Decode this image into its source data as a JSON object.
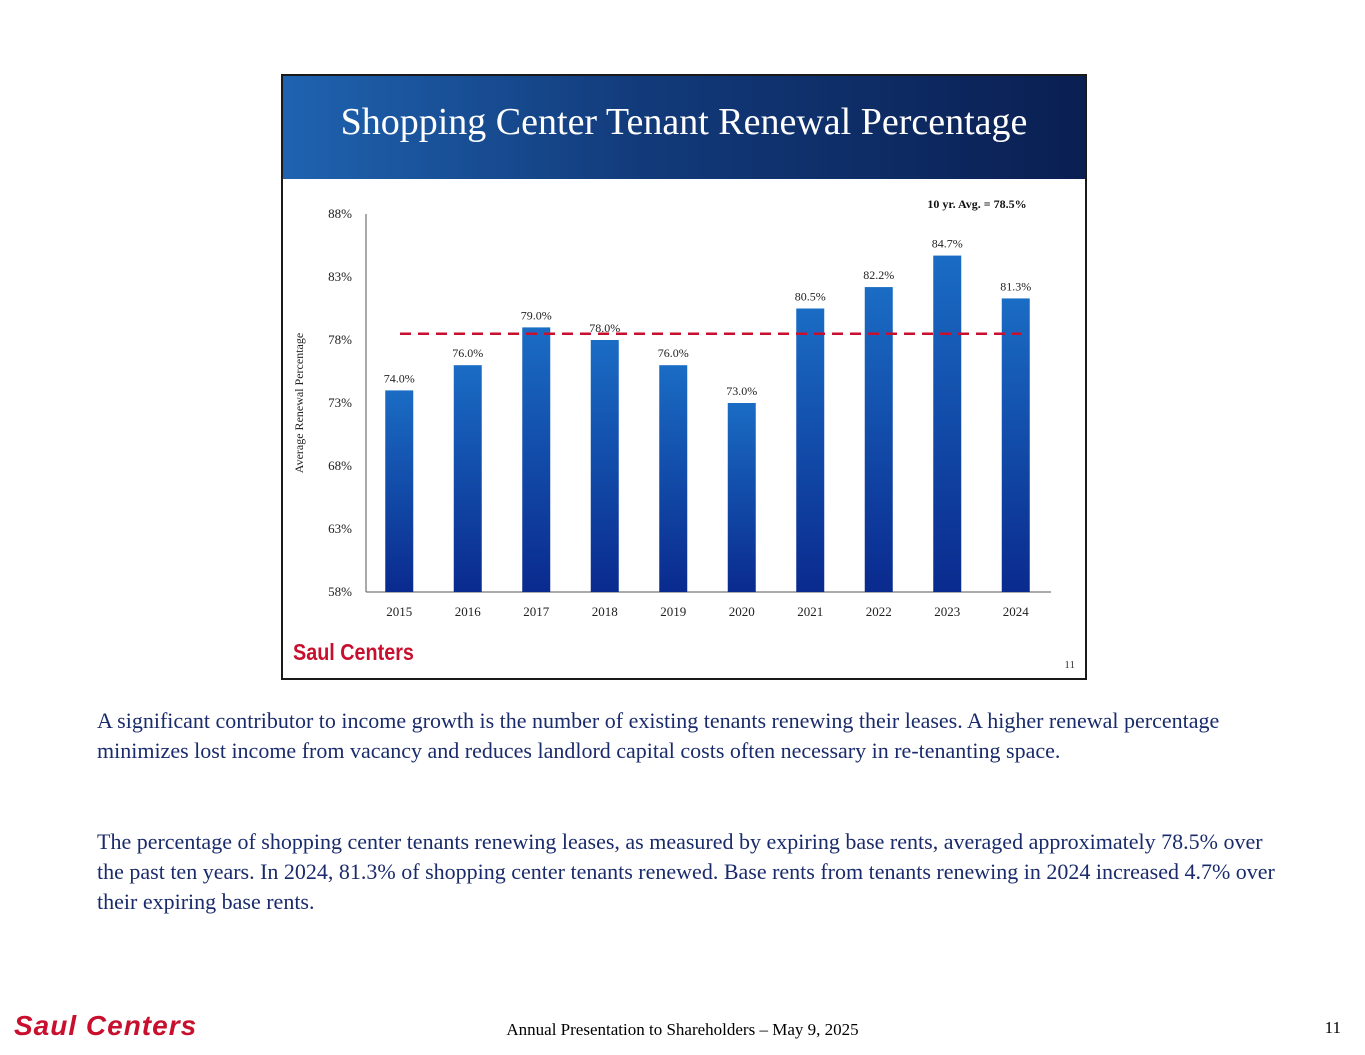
{
  "slide": {
    "title": "Shopping Center Tenant Renewal Percentage",
    "logo": "Saul Centers",
    "page_number": "11"
  },
  "chart_data": {
    "type": "bar",
    "title": "Shopping Center Tenant Renewal Percentage",
    "ylabel": "Average Renewal Percentage",
    "xlabel": "",
    "categories": [
      "2015",
      "2016",
      "2017",
      "2018",
      "2019",
      "2020",
      "2021",
      "2022",
      "2023",
      "2024"
    ],
    "values": [
      74.0,
      76.0,
      79.0,
      78.0,
      76.0,
      73.0,
      80.5,
      82.2,
      84.7,
      81.3
    ],
    "data_labels": [
      "74.0%",
      "76.0%",
      "79.0%",
      "78.0%",
      "76.0%",
      "73.0%",
      "80.5%",
      "82.2%",
      "84.7%",
      "81.3%"
    ],
    "ylim": [
      58,
      88
    ],
    "yticks": [
      58,
      63,
      68,
      73,
      78,
      83,
      88
    ],
    "ytick_labels": [
      "58%",
      "63%",
      "68%",
      "73%",
      "78%",
      "83%",
      "88%"
    ],
    "average_line": {
      "value": 78.5,
      "label": "10 yr. Avg. = 78.5%",
      "color": "#c8102e",
      "style": "dashed"
    },
    "bar_color": "#0a3ea8",
    "grid": false,
    "legend": "none"
  },
  "paragraphs": [
    "A significant contributor to income growth is the number of existing tenants renewing their leases. A higher renewal percentage minimizes lost income from vacancy and reduces landlord capital costs often necessary in re-tenanting space.",
    "The percentage of shopping center tenants renewing leases, as measured by expiring base rents, averaged approximately 78.5% over the past ten years. In 2024, 81.3% of shopping center tenants renewed. Base rents from tenants renewing in 2024 increased 4.7% over their expiring base rents."
  ],
  "footer": {
    "logo": "Saul Centers",
    "center_text": "Annual Presentation to Shareholders – May 9, 2025",
    "page_number": "11"
  },
  "colors": {
    "header_gradient_start": "#1f63b0",
    "header_gradient_end": "#0a1f52",
    "brand_red": "#c8102e",
    "paragraph_text": "#1a2b6b"
  }
}
